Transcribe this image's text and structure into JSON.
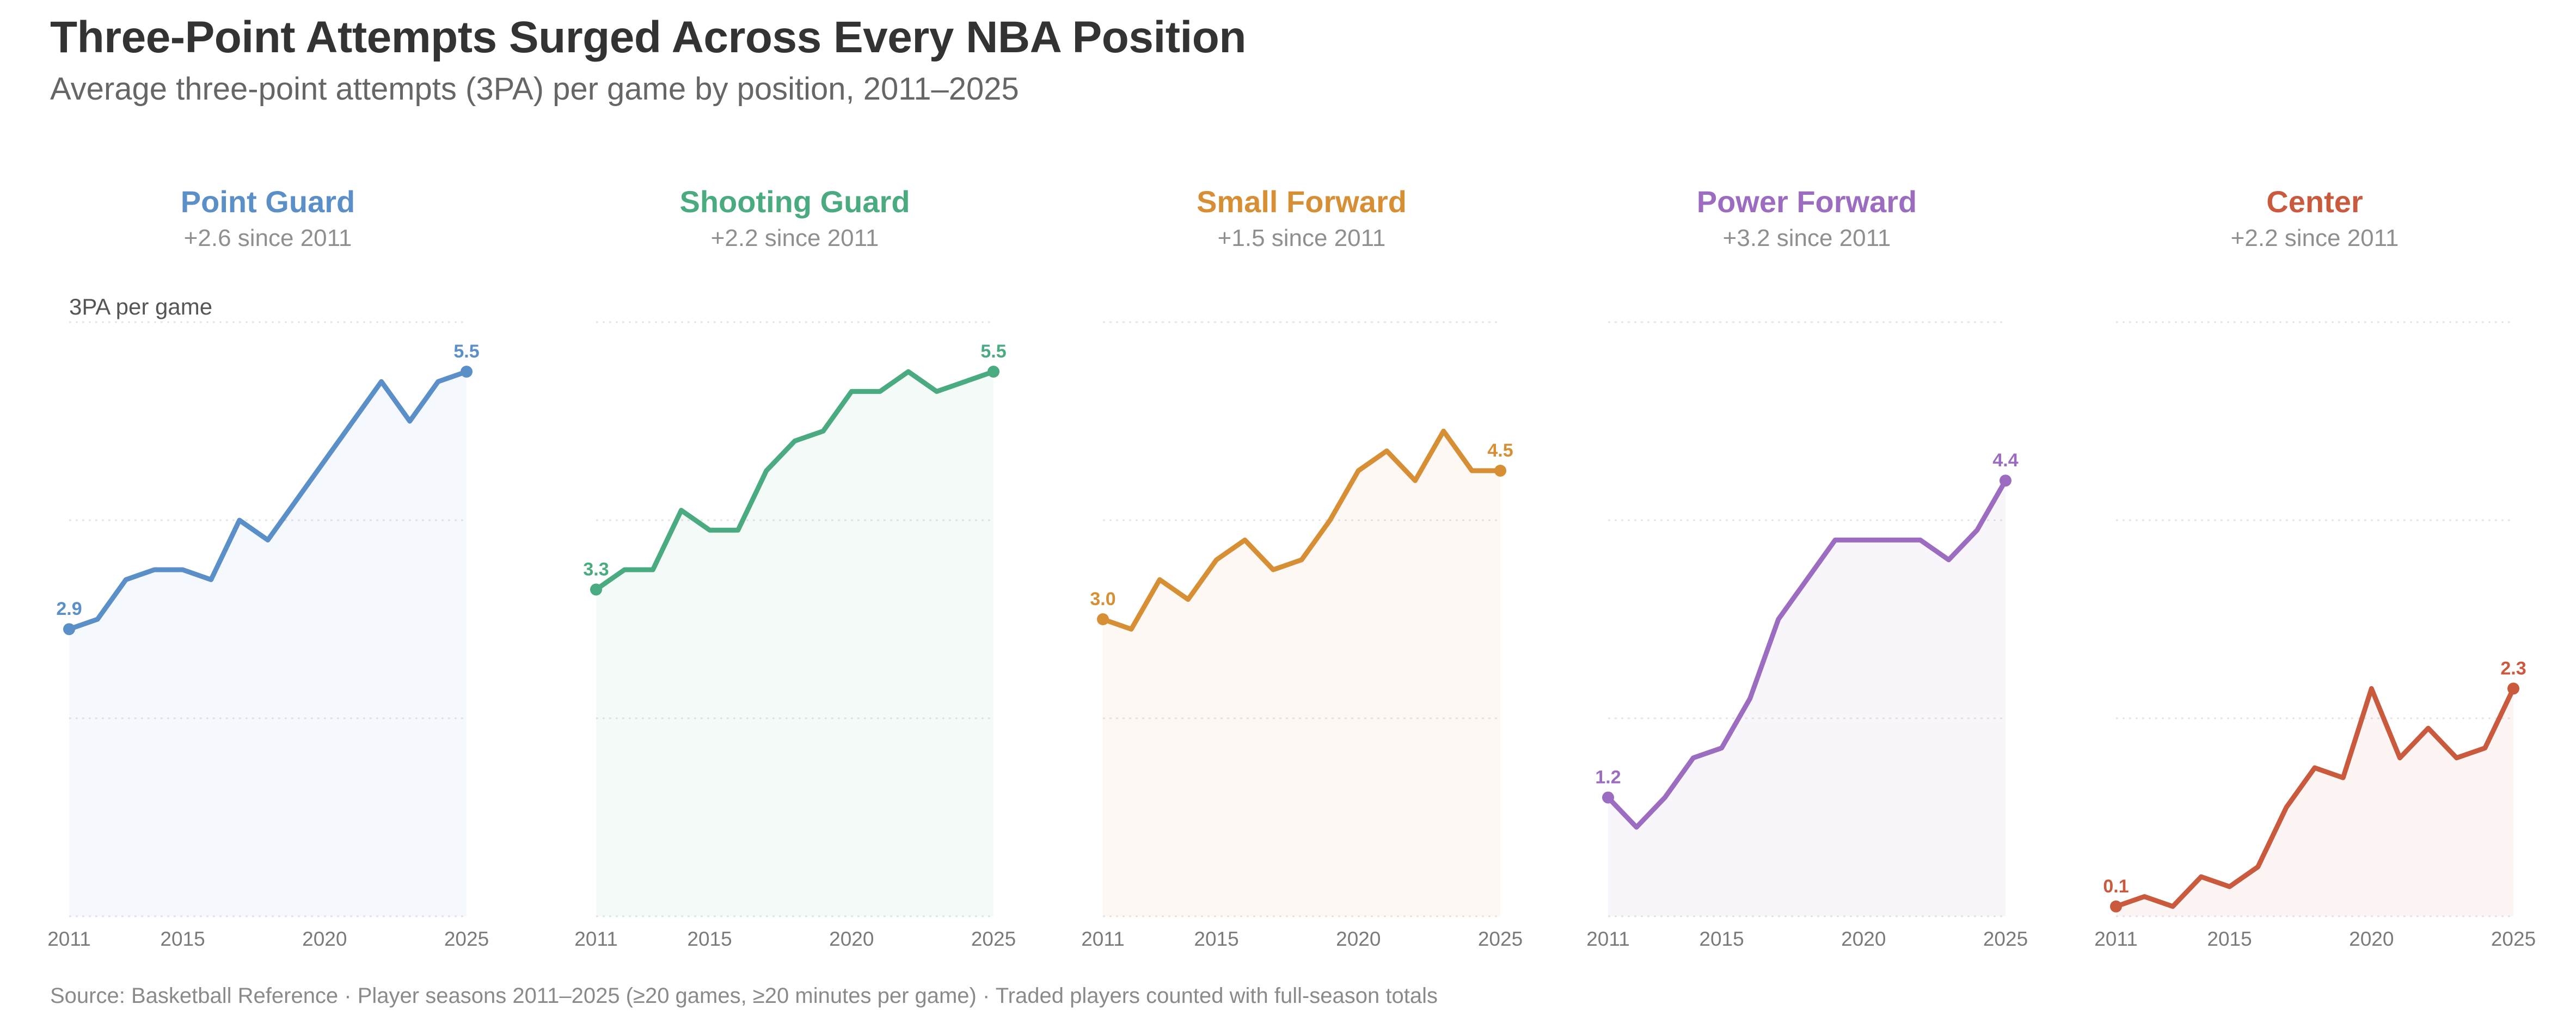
{
  "title": "Three-Point Attempts Surged Across Every NBA Position",
  "subtitle": "Average three-point attempts (3PA) per game by position, 2011–2025",
  "source": "Source: Basketball Reference · Player seasons 2011–2025 (≥20 games, ≥20 minutes per game) · Traded players counted with full-season totals",
  "chart_data": {
    "type": "line",
    "ylabel": "3PA per game",
    "ylim": [
      0,
      6
    ],
    "x": [
      2011,
      2012,
      2013,
      2014,
      2015,
      2016,
      2017,
      2018,
      2019,
      2020,
      2021,
      2022,
      2023,
      2024,
      2025
    ],
    "x_ticks": [
      "2011",
      "2015",
      "2020",
      "2025"
    ],
    "grid": "horizontal dotted",
    "series": [
      {
        "name": "Point Guard",
        "delta": "+2.6 since 2011",
        "color": "#5b8fc7",
        "start_label": "2.9",
        "end_label": "5.5",
        "values": [
          2.9,
          3.0,
          3.4,
          3.5,
          3.5,
          3.4,
          4.0,
          3.8,
          4.2,
          4.6,
          5.0,
          5.4,
          5.0,
          5.4,
          5.5
        ]
      },
      {
        "name": "Shooting Guard",
        "delta": "+2.2 since 2011",
        "color": "#4aaa80",
        "start_label": "3.3",
        "end_label": "5.5",
        "values": [
          3.3,
          3.5,
          3.5,
          4.1,
          3.9,
          3.9,
          4.5,
          4.8,
          4.9,
          5.3,
          5.3,
          5.5,
          5.3,
          5.4,
          5.5
        ]
      },
      {
        "name": "Small Forward",
        "delta": "+1.5 since 2011",
        "color": "#d68f35",
        "start_label": "3.0",
        "end_label": "4.5",
        "values": [
          3.0,
          2.9,
          3.4,
          3.2,
          3.6,
          3.8,
          3.5,
          3.6,
          4.0,
          4.5,
          4.7,
          4.4,
          4.9,
          4.5,
          4.5
        ]
      },
      {
        "name": "Power Forward",
        "delta": "+3.2 since 2011",
        "color": "#9b6cc0",
        "start_label": "1.2",
        "end_label": "4.4",
        "values": [
          1.2,
          0.9,
          1.2,
          1.6,
          1.7,
          2.2,
          3.0,
          3.4,
          3.8,
          3.8,
          3.8,
          3.8,
          3.6,
          3.9,
          4.4
        ]
      },
      {
        "name": "Center",
        "delta": "+2.2 since 2011",
        "color": "#c95a3d",
        "start_label": "0.1",
        "end_label": "2.3",
        "values": [
          0.1,
          0.2,
          0.1,
          0.4,
          0.3,
          0.5,
          1.1,
          1.5,
          1.4,
          2.3,
          1.6,
          1.9,
          1.6,
          1.7,
          2.3
        ]
      }
    ]
  }
}
